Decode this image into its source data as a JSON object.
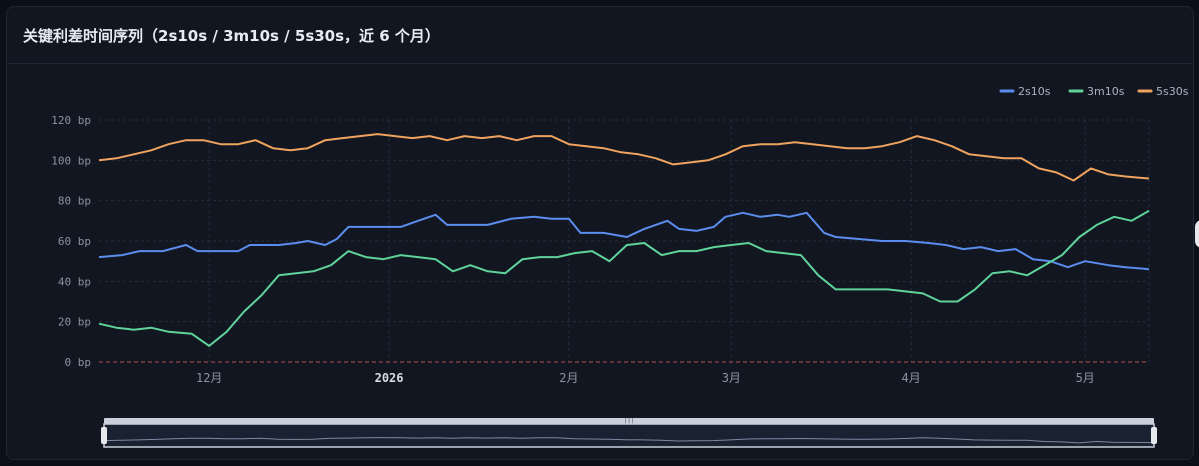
{
  "card": {
    "title": "关键利差时间序列（2s10s / 3m10s / 5s30s，近 6 个月）"
  },
  "chart_data": {
    "type": "line",
    "title": "关键利差时间序列（2s10s / 3m10s / 5s30s，近 6 个月）",
    "ylim": [
      0,
      120
    ],
    "y_unit": "bp",
    "y_ticks": [
      0,
      20,
      40,
      60,
      80,
      100,
      120
    ],
    "y_tick_labels": [
      "0 bp",
      "20 bp",
      "40 bp",
      "60 bp",
      "80 bp",
      "100 bp",
      "120 bp"
    ],
    "x_range": [
      "2025-11-12",
      "2026-05-12"
    ],
    "x_ticks": [
      {
        "date": "2025-12-01",
        "label": "12月",
        "bold": false
      },
      {
        "date": "2026-01-01",
        "label": "2026",
        "bold": true
      },
      {
        "date": "2026-02-01",
        "label": "2月",
        "bold": false
      },
      {
        "date": "2026-03-01",
        "label": "3月",
        "bold": false
      },
      {
        "date": "2026-04-01",
        "label": "4月",
        "bold": false
      },
      {
        "date": "2026-05-01",
        "label": "5月",
        "bold": false
      }
    ],
    "reference_line": {
      "y": 0,
      "style": "dashed",
      "color": "#c0504d"
    },
    "grid": true,
    "legend_position": "top-right",
    "series": [
      {
        "name": "2s10s",
        "color": "#5b8def",
        "points": [
          [
            "2025-11-12",
            52
          ],
          [
            "2025-11-16",
            53
          ],
          [
            "2025-11-19",
            55
          ],
          [
            "2025-11-23",
            55
          ],
          [
            "2025-11-27",
            58
          ],
          [
            "2025-11-29",
            55
          ],
          [
            "2025-12-03",
            55
          ],
          [
            "2025-12-06",
            55
          ],
          [
            "2025-12-08",
            58
          ],
          [
            "2025-12-10",
            58
          ],
          [
            "2025-12-13",
            58
          ],
          [
            "2025-12-16",
            59
          ],
          [
            "2025-12-18",
            60
          ],
          [
            "2025-12-21",
            58
          ],
          [
            "2025-12-23",
            61
          ],
          [
            "2025-12-25",
            67
          ],
          [
            "2025-12-28",
            67
          ],
          [
            "2025-12-31",
            67
          ],
          [
            "2026-01-03",
            67
          ],
          [
            "2026-01-06",
            70
          ],
          [
            "2026-01-09",
            73
          ],
          [
            "2026-01-11",
            68
          ],
          [
            "2026-01-14",
            68
          ],
          [
            "2026-01-18",
            68
          ],
          [
            "2026-01-22",
            71
          ],
          [
            "2026-01-26",
            72
          ],
          [
            "2026-01-29",
            71
          ],
          [
            "2026-02-01",
            71
          ],
          [
            "2026-02-03",
            64
          ],
          [
            "2026-02-07",
            64
          ],
          [
            "2026-02-11",
            62
          ],
          [
            "2026-02-14",
            66
          ],
          [
            "2026-02-18",
            70
          ],
          [
            "2026-02-20",
            66
          ],
          [
            "2026-02-23",
            65
          ],
          [
            "2026-02-26",
            67
          ],
          [
            "2026-02-28",
            72
          ],
          [
            "2026-03-03",
            74
          ],
          [
            "2026-03-06",
            72
          ],
          [
            "2026-03-09",
            73
          ],
          [
            "2026-03-11",
            72
          ],
          [
            "2026-03-14",
            74
          ],
          [
            "2026-03-17",
            64
          ],
          [
            "2026-03-19",
            62
          ],
          [
            "2026-03-23",
            61
          ],
          [
            "2026-03-27",
            60
          ],
          [
            "2026-03-31",
            60
          ],
          [
            "2026-04-04",
            59
          ],
          [
            "2026-04-07",
            58
          ],
          [
            "2026-04-10",
            56
          ],
          [
            "2026-04-13",
            57
          ],
          [
            "2026-04-16",
            55
          ],
          [
            "2026-04-19",
            56
          ],
          [
            "2026-04-22",
            51
          ],
          [
            "2026-04-25",
            50
          ],
          [
            "2026-04-28",
            47
          ],
          [
            "2026-05-01",
            50
          ],
          [
            "2026-05-05",
            48
          ],
          [
            "2026-05-08",
            47
          ],
          [
            "2026-05-12",
            46
          ]
        ]
      },
      {
        "name": "3m10s",
        "color": "#5fd39a",
        "points": [
          [
            "2025-11-12",
            19
          ],
          [
            "2025-11-15",
            17
          ],
          [
            "2025-11-18",
            16
          ],
          [
            "2025-11-21",
            17
          ],
          [
            "2025-11-24",
            15
          ],
          [
            "2025-11-28",
            14
          ],
          [
            "2025-12-01",
            8
          ],
          [
            "2025-12-04",
            15
          ],
          [
            "2025-12-07",
            25
          ],
          [
            "2025-12-10",
            33
          ],
          [
            "2025-12-13",
            43
          ],
          [
            "2025-12-16",
            44
          ],
          [
            "2025-12-19",
            45
          ],
          [
            "2025-12-22",
            48
          ],
          [
            "2025-12-25",
            55
          ],
          [
            "2025-12-28",
            52
          ],
          [
            "2025-12-31",
            51
          ],
          [
            "2026-01-03",
            53
          ],
          [
            "2026-01-06",
            52
          ],
          [
            "2026-01-09",
            51
          ],
          [
            "2026-01-12",
            45
          ],
          [
            "2026-01-15",
            48
          ],
          [
            "2026-01-18",
            45
          ],
          [
            "2026-01-21",
            44
          ],
          [
            "2026-01-24",
            51
          ],
          [
            "2026-01-27",
            52
          ],
          [
            "2026-01-30",
            52
          ],
          [
            "2026-02-02",
            54
          ],
          [
            "2026-02-05",
            55
          ],
          [
            "2026-02-08",
            50
          ],
          [
            "2026-02-11",
            58
          ],
          [
            "2026-02-14",
            59
          ],
          [
            "2026-02-17",
            53
          ],
          [
            "2026-02-20",
            55
          ],
          [
            "2026-02-23",
            55
          ],
          [
            "2026-02-26",
            57
          ],
          [
            "2026-03-01",
            58
          ],
          [
            "2026-03-04",
            59
          ],
          [
            "2026-03-07",
            55
          ],
          [
            "2026-03-10",
            54
          ],
          [
            "2026-03-13",
            53
          ],
          [
            "2026-03-16",
            43
          ],
          [
            "2026-03-19",
            36
          ],
          [
            "2026-03-22",
            36
          ],
          [
            "2026-03-25",
            36
          ],
          [
            "2026-03-28",
            36
          ],
          [
            "2026-03-31",
            35
          ],
          [
            "2026-04-03",
            34
          ],
          [
            "2026-04-06",
            30
          ],
          [
            "2026-04-09",
            30
          ],
          [
            "2026-04-12",
            36
          ],
          [
            "2026-04-15",
            44
          ],
          [
            "2026-04-18",
            45
          ],
          [
            "2026-04-21",
            43
          ],
          [
            "2026-04-24",
            48
          ],
          [
            "2026-04-27",
            53
          ],
          [
            "2026-04-30",
            62
          ],
          [
            "2026-05-03",
            68
          ],
          [
            "2026-05-06",
            72
          ],
          [
            "2026-05-09",
            70
          ],
          [
            "2026-05-12",
            75
          ]
        ]
      },
      {
        "name": "5s30s",
        "color": "#f0a35e",
        "points": [
          [
            "2025-11-12",
            100
          ],
          [
            "2025-11-15",
            101
          ],
          [
            "2025-11-18",
            103
          ],
          [
            "2025-11-21",
            105
          ],
          [
            "2025-11-24",
            108
          ],
          [
            "2025-11-27",
            110
          ],
          [
            "2025-11-30",
            110
          ],
          [
            "2025-12-03",
            108
          ],
          [
            "2025-12-06",
            108
          ],
          [
            "2025-12-09",
            110
          ],
          [
            "2025-12-12",
            106
          ],
          [
            "2025-12-15",
            105
          ],
          [
            "2025-12-18",
            106
          ],
          [
            "2025-12-21",
            110
          ],
          [
            "2025-12-24",
            111
          ],
          [
            "2025-12-27",
            112
          ],
          [
            "2025-12-30",
            113
          ],
          [
            "2026-01-02",
            112
          ],
          [
            "2026-01-05",
            111
          ],
          [
            "2026-01-08",
            112
          ],
          [
            "2026-01-11",
            110
          ],
          [
            "2026-01-14",
            112
          ],
          [
            "2026-01-17",
            111
          ],
          [
            "2026-01-20",
            112
          ],
          [
            "2026-01-23",
            110
          ],
          [
            "2026-01-26",
            112
          ],
          [
            "2026-01-29",
            112
          ],
          [
            "2026-02-01",
            108
          ],
          [
            "2026-02-04",
            107
          ],
          [
            "2026-02-07",
            106
          ],
          [
            "2026-02-10",
            104
          ],
          [
            "2026-02-13",
            103
          ],
          [
            "2026-02-16",
            101
          ],
          [
            "2026-02-19",
            98
          ],
          [
            "2026-02-22",
            99
          ],
          [
            "2026-02-25",
            100
          ],
          [
            "2026-02-28",
            103
          ],
          [
            "2026-03-03",
            107
          ],
          [
            "2026-03-06",
            108
          ],
          [
            "2026-03-09",
            108
          ],
          [
            "2026-03-12",
            109
          ],
          [
            "2026-03-15",
            108
          ],
          [
            "2026-03-18",
            107
          ],
          [
            "2026-03-21",
            106
          ],
          [
            "2026-03-24",
            106
          ],
          [
            "2026-03-27",
            107
          ],
          [
            "2026-03-30",
            109
          ],
          [
            "2026-04-02",
            112
          ],
          [
            "2026-04-05",
            110
          ],
          [
            "2026-04-08",
            107
          ],
          [
            "2026-04-11",
            103
          ],
          [
            "2026-04-14",
            102
          ],
          [
            "2026-04-17",
            101
          ],
          [
            "2026-04-20",
            101
          ],
          [
            "2026-04-23",
            96
          ],
          [
            "2026-04-26",
            94
          ],
          [
            "2026-04-29",
            90
          ],
          [
            "2026-05-02",
            96
          ],
          [
            "2026-05-05",
            93
          ],
          [
            "2026-05-08",
            92
          ],
          [
            "2026-05-12",
            91
          ]
        ]
      }
    ]
  }
}
